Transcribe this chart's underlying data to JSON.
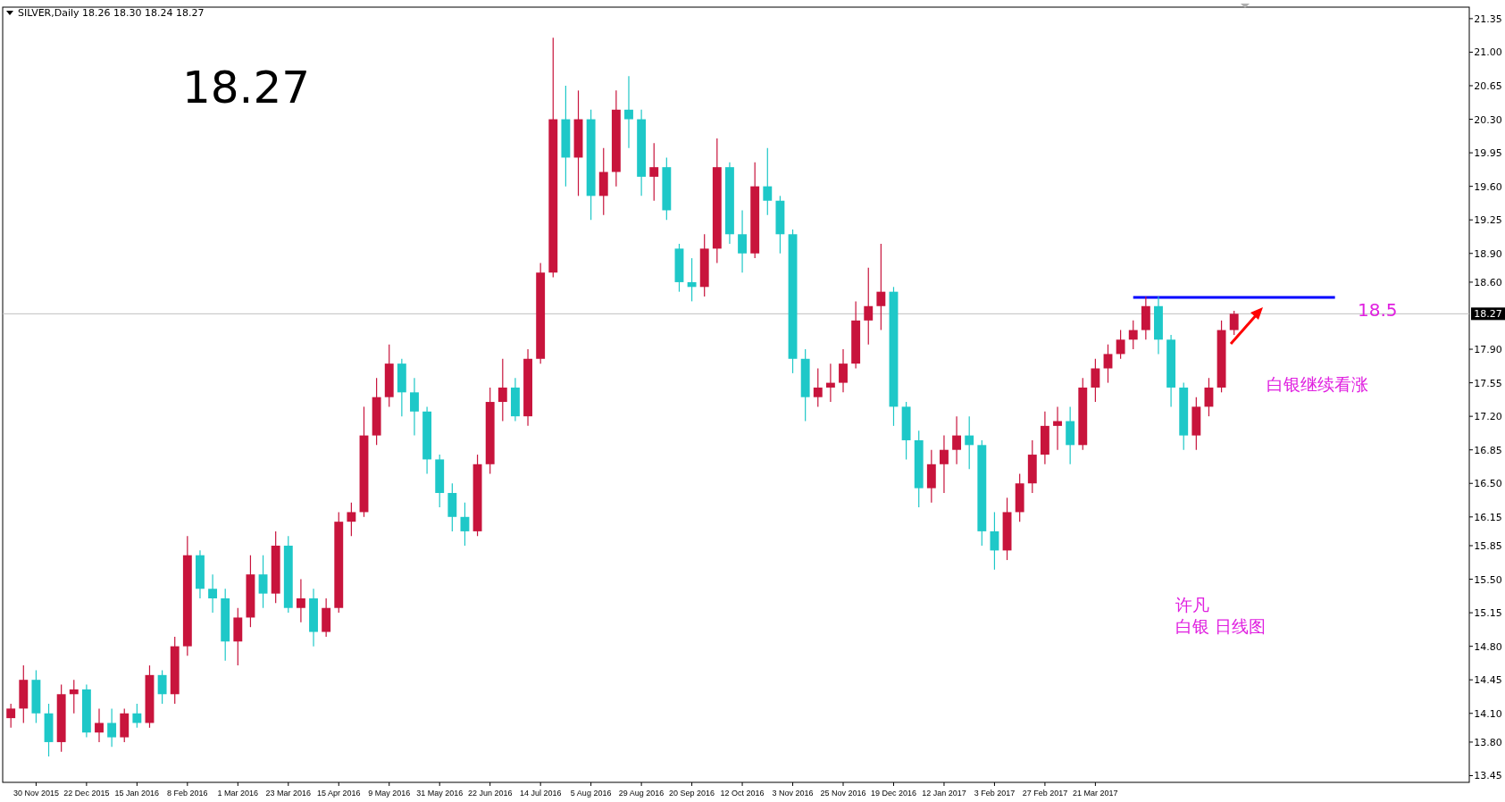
{
  "chart_data": {
    "type": "candlestick",
    "title": "SILVER,Daily  18.26 18.30 18.24 18.27",
    "categories": [
      null,
      null,
      "30 Nov 2015",
      null,
      null,
      null,
      "22 Dec 2015",
      null,
      null,
      null,
      "15 Jan 2016",
      null,
      null,
      null,
      "8 Feb 2016",
      null,
      null,
      null,
      "1 Mar 2016",
      null,
      null,
      null,
      "23 Mar 2016",
      null,
      null,
      null,
      "15 Apr 2016",
      null,
      null,
      null,
      "9 May 2016",
      null,
      null,
      null,
      "31 May 2016",
      null,
      null,
      null,
      "22 Jun 2016",
      null,
      null,
      null,
      "14 Jul 2016",
      null,
      null,
      null,
      "5 Aug 2016",
      null,
      null,
      null,
      "29 Aug 2016",
      null,
      null,
      null,
      "20 Sep 2016",
      null,
      null,
      null,
      "12 Oct 2016",
      null,
      null,
      null,
      "3 Nov 2016",
      null,
      null,
      null,
      "25 Nov 2016",
      null,
      null,
      null,
      "19 Dec 2016",
      null,
      null,
      null,
      "12 Jan 2017",
      null,
      null,
      null,
      "3 Feb 2017",
      null,
      null,
      null,
      "27 Feb 2017",
      null,
      null,
      null,
      "21 Mar 2017",
      null,
      null,
      null,
      null,
      null,
      null,
      null,
      null,
      null,
      null,
      null,
      null,
      null,
      null,
      null,
      null,
      null,
      null,
      null,
      null,
      null,
      null,
      null,
      null,
      null,
      null,
      null,
      null,
      null
    ],
    "ohlc": [
      [
        14.05,
        14.2,
        13.95,
        14.15
      ],
      [
        14.15,
        14.6,
        14.0,
        14.45
      ],
      [
        14.45,
        14.55,
        14.0,
        14.1
      ],
      [
        14.1,
        14.2,
        13.65,
        13.8
      ],
      [
        13.8,
        14.4,
        13.7,
        14.3
      ],
      [
        14.3,
        14.45,
        14.1,
        14.35
      ],
      [
        14.35,
        14.4,
        13.85,
        13.9
      ],
      [
        13.9,
        14.15,
        13.8,
        14.0
      ],
      [
        14.0,
        14.15,
        13.75,
        13.85
      ],
      [
        13.85,
        14.15,
        13.8,
        14.1
      ],
      [
        14.1,
        14.2,
        13.95,
        14.0
      ],
      [
        14.0,
        14.6,
        13.95,
        14.5
      ],
      [
        14.5,
        14.55,
        14.2,
        14.3
      ],
      [
        14.3,
        14.9,
        14.2,
        14.8
      ],
      [
        14.8,
        15.95,
        14.7,
        15.75
      ],
      [
        15.75,
        15.8,
        15.3,
        15.4
      ],
      [
        15.4,
        15.55,
        15.15,
        15.3
      ],
      [
        15.3,
        15.4,
        14.65,
        14.85
      ],
      [
        14.85,
        15.2,
        14.6,
        15.1
      ],
      [
        15.1,
        15.75,
        15.0,
        15.55
      ],
      [
        15.55,
        15.75,
        15.2,
        15.35
      ],
      [
        15.35,
        16.0,
        15.25,
        15.85
      ],
      [
        15.85,
        15.95,
        15.15,
        15.2
      ],
      [
        15.2,
        15.5,
        15.05,
        15.3
      ],
      [
        15.3,
        15.4,
        14.8,
        14.95
      ],
      [
        14.95,
        15.3,
        14.9,
        15.2
      ],
      [
        15.2,
        16.2,
        15.15,
        16.1
      ],
      [
        16.1,
        16.3,
        15.95,
        16.2
      ],
      [
        16.2,
        17.3,
        16.15,
        17.0
      ],
      [
        17.0,
        17.6,
        16.9,
        17.4
      ],
      [
        17.4,
        17.95,
        17.3,
        17.75
      ],
      [
        17.75,
        17.8,
        17.2,
        17.45
      ],
      [
        17.45,
        17.6,
        17.0,
        17.25
      ],
      [
        17.25,
        17.3,
        16.6,
        16.75
      ],
      [
        16.75,
        16.8,
        16.25,
        16.4
      ],
      [
        16.4,
        16.5,
        16.0,
        16.15
      ],
      [
        16.15,
        16.3,
        15.85,
        16.0
      ],
      [
        16.0,
        16.8,
        15.95,
        16.7
      ],
      [
        16.7,
        17.5,
        16.6,
        17.35
      ],
      [
        17.35,
        17.8,
        17.15,
        17.5
      ],
      [
        17.5,
        17.6,
        17.15,
        17.2
      ],
      [
        17.2,
        17.9,
        17.1,
        17.8
      ],
      [
        17.8,
        18.8,
        17.75,
        18.7
      ],
      [
        18.7,
        21.15,
        18.65,
        20.3
      ],
      [
        20.3,
        20.65,
        19.6,
        19.9
      ],
      [
        19.9,
        20.6,
        19.5,
        20.3
      ],
      [
        20.3,
        20.4,
        19.25,
        19.5
      ],
      [
        19.5,
        20.0,
        19.3,
        19.75
      ],
      [
        19.75,
        20.6,
        19.6,
        20.4
      ],
      [
        20.4,
        20.75,
        20.0,
        20.3
      ],
      [
        20.3,
        20.4,
        19.5,
        19.7
      ],
      [
        19.7,
        20.05,
        19.45,
        19.8
      ],
      [
        19.8,
        19.9,
        19.25,
        19.35
      ],
      [
        18.95,
        19.0,
        18.5,
        18.6
      ],
      [
        18.6,
        18.85,
        18.4,
        18.55
      ],
      [
        18.55,
        19.1,
        18.45,
        18.95
      ],
      [
        18.95,
        20.1,
        18.8,
        19.8
      ],
      [
        19.8,
        19.85,
        19.0,
        19.1
      ],
      [
        19.1,
        19.35,
        18.7,
        18.9
      ],
      [
        18.9,
        19.85,
        18.85,
        19.6
      ],
      [
        19.6,
        20.0,
        19.3,
        19.45
      ],
      [
        19.45,
        19.5,
        18.9,
        19.1
      ],
      [
        19.1,
        19.15,
        17.65,
        17.8
      ],
      [
        17.8,
        17.9,
        17.15,
        17.4
      ],
      [
        17.4,
        17.7,
        17.3,
        17.5
      ],
      [
        17.5,
        17.75,
        17.35,
        17.55
      ],
      [
        17.55,
        17.9,
        17.45,
        17.75
      ],
      [
        17.75,
        18.4,
        17.7,
        18.2
      ],
      [
        18.2,
        18.75,
        17.95,
        18.35
      ],
      [
        18.35,
        19.0,
        18.1,
        18.5
      ],
      [
        18.5,
        18.55,
        17.1,
        17.3
      ],
      [
        17.3,
        17.35,
        16.75,
        16.95
      ],
      [
        16.95,
        17.05,
        16.25,
        16.45
      ],
      [
        16.45,
        16.85,
        16.3,
        16.7
      ],
      [
        16.7,
        17.0,
        16.4,
        16.85
      ],
      [
        16.85,
        17.2,
        16.7,
        17.0
      ],
      [
        17.0,
        17.2,
        16.65,
        16.9
      ],
      [
        16.9,
        16.95,
        15.85,
        16.0
      ],
      [
        16.0,
        16.2,
        15.6,
        15.8
      ],
      [
        15.8,
        16.35,
        15.7,
        16.2
      ],
      [
        16.2,
        16.6,
        16.1,
        16.5
      ],
      [
        16.5,
        16.95,
        16.4,
        16.8
      ],
      [
        16.8,
        17.25,
        16.7,
        17.1
      ],
      [
        17.1,
        17.3,
        16.85,
        17.15
      ],
      [
        17.15,
        17.3,
        16.7,
        16.9
      ],
      [
        16.9,
        17.6,
        16.85,
        17.5
      ],
      [
        17.5,
        17.8,
        17.35,
        17.7
      ],
      [
        17.7,
        17.95,
        17.55,
        17.85
      ],
      [
        17.85,
        18.1,
        17.8,
        18.0
      ],
      [
        18.0,
        18.2,
        17.9,
        18.1
      ],
      [
        18.1,
        18.45,
        18.0,
        18.35
      ],
      [
        18.35,
        18.45,
        17.85,
        18.0
      ],
      [
        18.0,
        18.05,
        17.3,
        17.5
      ],
      [
        17.5,
        17.55,
        16.85,
        17.0
      ],
      [
        17.0,
        17.4,
        16.85,
        17.3
      ],
      [
        17.3,
        17.6,
        17.2,
        17.5
      ],
      [
        17.5,
        18.2,
        17.45,
        18.1
      ],
      [
        18.1,
        18.3,
        18.05,
        18.27
      ],
      null,
      null,
      null,
      null,
      null,
      null,
      null,
      null,
      null,
      null,
      null,
      null,
      null,
      null,
      null,
      null,
      null,
      null
    ],
    "series": [
      {
        "type": "line",
        "color": "#0000ff",
        "values": [
          null,
          null,
          null,
          null,
          null,
          null,
          null,
          null,
          null,
          null,
          null,
          null,
          null,
          null,
          null,
          null,
          null,
          null,
          null,
          null,
          null,
          null,
          null,
          null,
          null,
          null,
          null,
          null,
          null,
          null,
          null,
          null,
          null,
          null,
          null,
          null,
          null,
          null,
          null,
          null,
          null,
          null,
          null,
          null,
          null,
          null,
          null,
          null,
          null,
          null,
          null,
          null,
          null,
          null,
          null,
          null,
          null,
          null,
          null,
          null,
          null,
          null,
          null,
          null,
          null,
          null,
          null,
          null,
          null,
          null,
          null,
          null,
          null,
          null,
          null,
          null,
          null,
          null,
          null,
          null,
          null,
          null,
          null,
          null,
          null,
          null,
          null,
          null,
          null,
          18.44,
          18.44,
          18.44,
          18.44,
          18.44,
          18.44,
          18.44,
          18.44,
          18.44,
          18.44,
          18.44,
          18.44,
          18.44,
          18.44,
          18.44,
          18.44,
          18.44,
          null,
          null,
          null,
          null,
          null,
          null,
          null,
          null,
          null,
          null
        ]
      }
    ],
    "ylim": [
      13.38,
      21.47
    ],
    "yticks": [
      13.45,
      {
        "value": 13.8,
        "label": "13.80"
      },
      {
        "value": 14.1,
        "label": "14.10"
      },
      14.45,
      {
        "value": 14.8,
        "label": "14.80"
      },
      15.15,
      {
        "value": 15.5,
        "label": "15.50"
      },
      15.85,
      16.15,
      {
        "value": 16.5,
        "label": "16.50"
      },
      16.85,
      {
        "value": 17.2,
        "label": "17.20"
      },
      17.55,
      {
        "value": 17.9,
        "label": "17.90"
      },
      {
        "value": 18.6,
        "label": "18.60"
      },
      {
        "value": 18.9,
        "label": "18.90"
      },
      19.25,
      {
        "value": 19.6,
        "label": "19.60"
      },
      19.95,
      {
        "value": 20.3,
        "label": "20.30"
      },
      20.65,
      {
        "value": 21.0,
        "label": "21.00"
      },
      21.35
    ],
    "ref_lines": [
      {
        "axis": "y",
        "value": 18.27,
        "label": "18.27",
        "color": "#c0c0c0"
      }
    ],
    "annotations": [
      "18.27",
      "18.5",
      "白银继续看涨",
      "许凡",
      "白银 日线图"
    ],
    "grid": false
  }
}
